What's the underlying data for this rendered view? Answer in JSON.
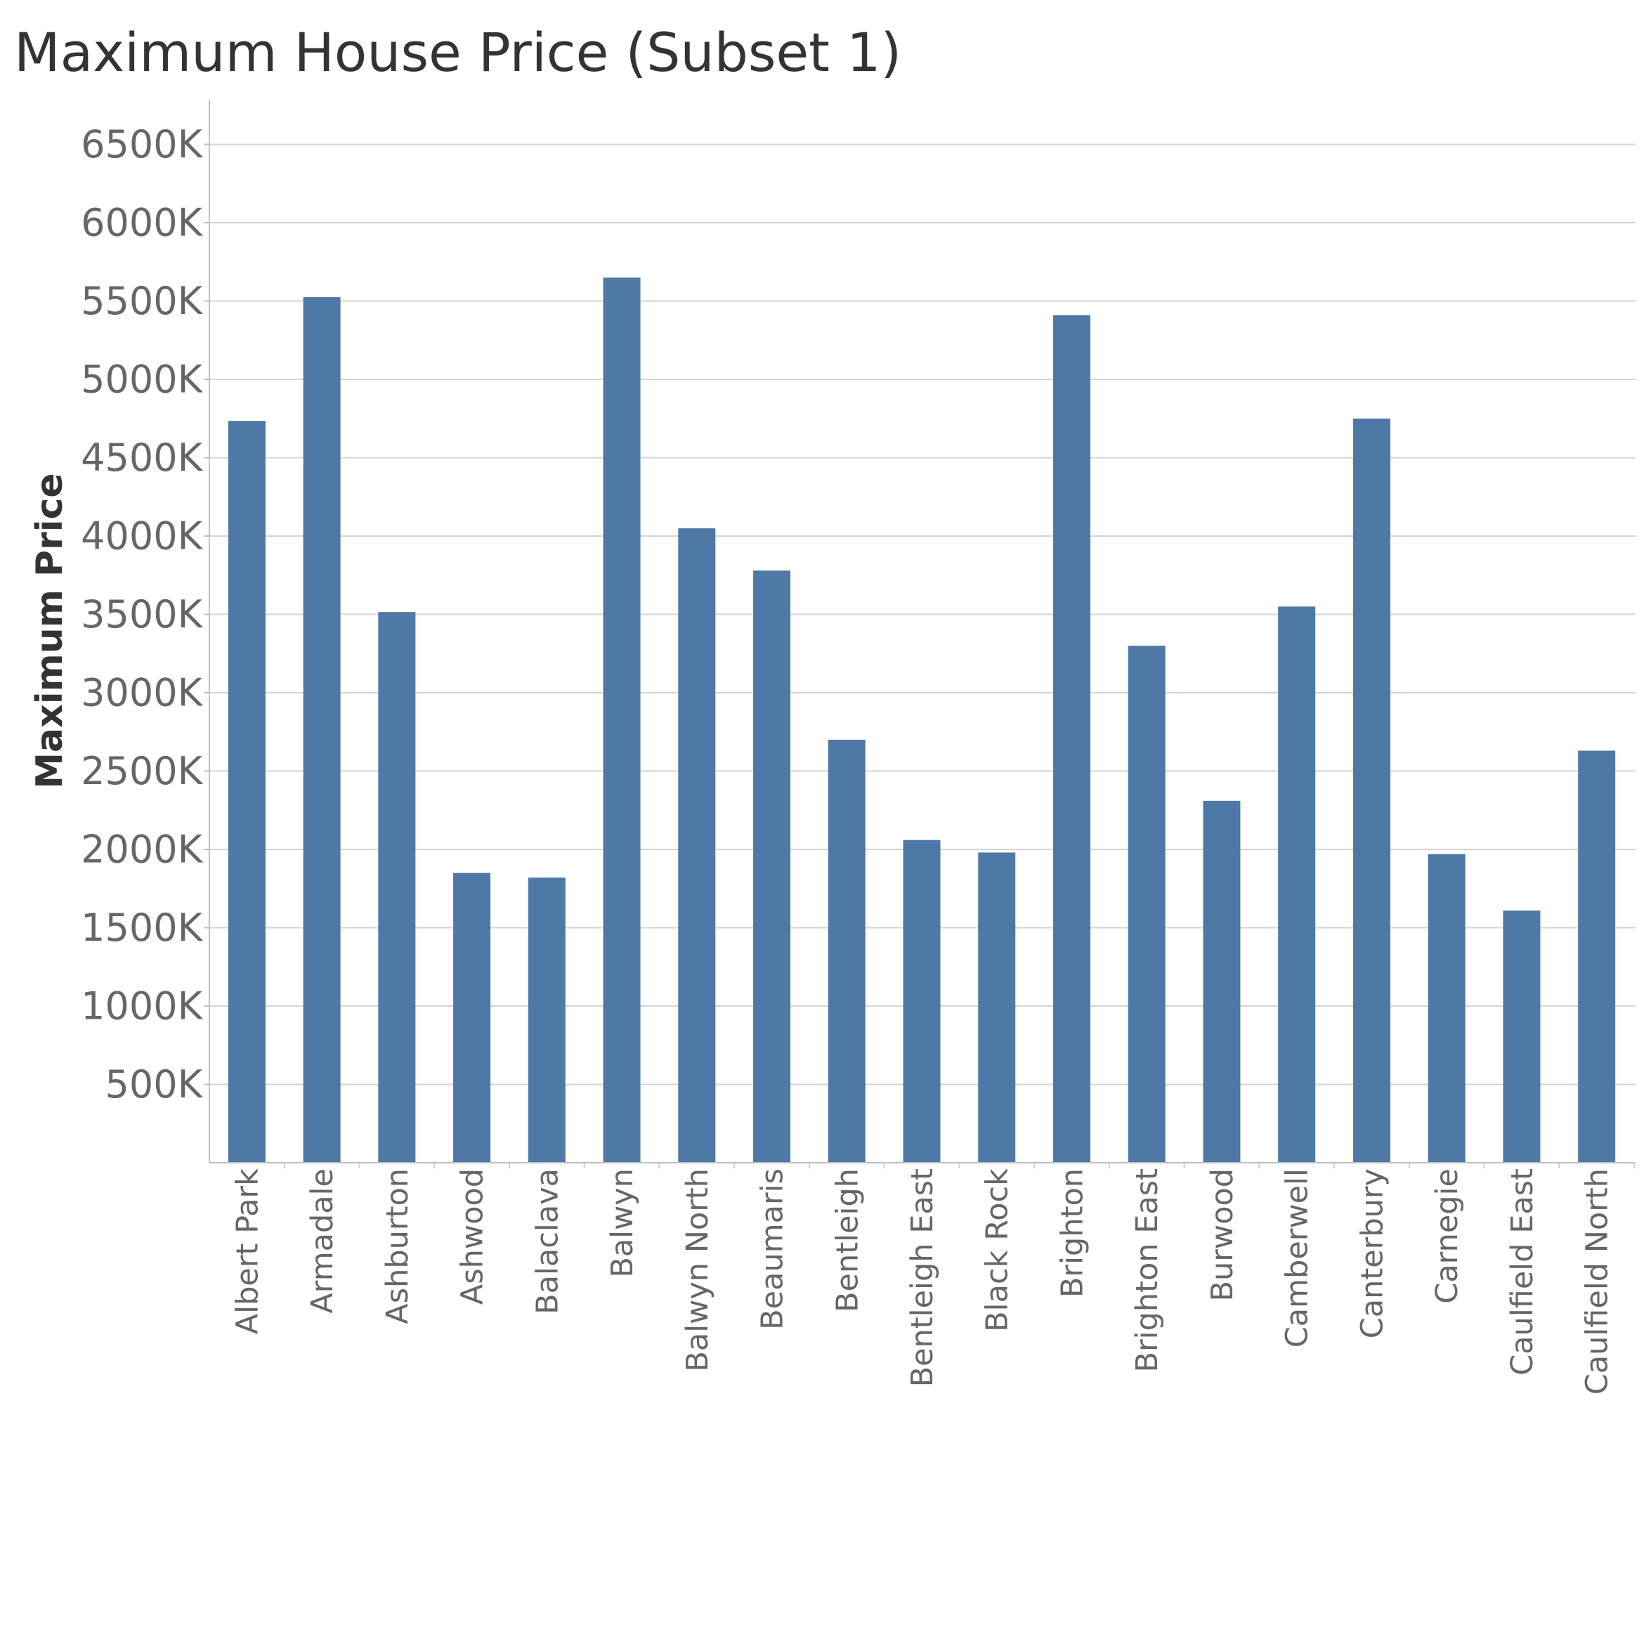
{
  "chart_data": {
    "type": "bar",
    "title": "Maximum House Price (Subset 1)",
    "xlabel": "",
    "ylabel": "Maximum Price",
    "categories": [
      "Albert Park",
      "Armadale",
      "Ashburton",
      "Ashwood",
      "Balaclava",
      "Balwyn",
      "Balwyn North",
      "Beaumaris",
      "Bentleigh",
      "Bentleigh East",
      "Black Rock",
      "Brighton",
      "Brighton East",
      "Burwood",
      "Camberwell",
      "Canterbury",
      "Carnegie",
      "Caulfield East",
      "Caulfield North"
    ],
    "values": [
      4735000,
      5525000,
      3515000,
      1850000,
      1820000,
      5650000,
      4050000,
      3780000,
      2700000,
      2060000,
      1980000,
      5410000,
      3300000,
      2310000,
      3550000,
      4750000,
      1970000,
      1610000,
      2630000
    ],
    "ylim": [
      0,
      6800000
    ],
    "yticks": [
      500000,
      1000000,
      1500000,
      2000000,
      2500000,
      3000000,
      3500000,
      4000000,
      4500000,
      5000000,
      5500000,
      6000000,
      6500000
    ],
    "ytick_labels": [
      "500K",
      "1000K",
      "1500K",
      "2000K",
      "2500K",
      "3000K",
      "3500K",
      "4000K",
      "4500K",
      "5000K",
      "5500K",
      "6000K",
      "6500K"
    ],
    "grid": true,
    "bar_color": "#4e79a7"
  }
}
